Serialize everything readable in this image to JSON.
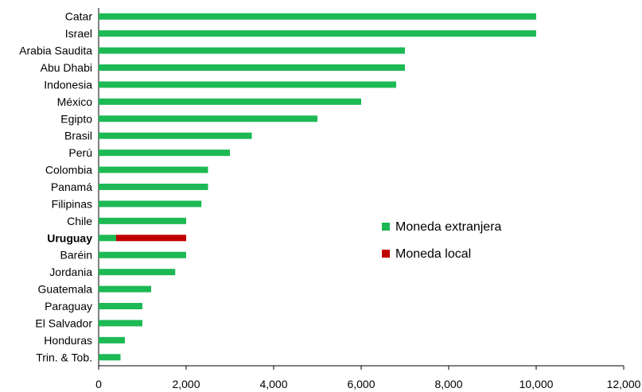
{
  "chart_data": {
    "type": "bar",
    "orientation": "horizontal",
    "stacked": true,
    "categories": [
      "Catar",
      "Israel",
      "Arabia Saudita",
      "Abu Dhabi",
      "Indonesia",
      "México",
      "Egipto",
      "Brasil",
      "Perú",
      "Colombia",
      "Panamá",
      "Filipinas",
      "Chile",
      "Uruguay",
      "Baréin",
      "Jordania",
      "Guatemala",
      "Paraguay",
      "El Salvador",
      "Honduras",
      "Trin. & Tob."
    ],
    "highlighted_category": "Uruguay",
    "series": [
      {
        "name": "Moneda extranjera",
        "color": "#1db954",
        "values": [
          10000,
          10000,
          7000,
          7000,
          6800,
          6000,
          5000,
          3500,
          3000,
          2500,
          2500,
          2350,
          2000,
          400,
          2000,
          1750,
          1200,
          1000,
          1000,
          600,
          500
        ]
      },
      {
        "name": "Moneda local",
        "color": "#c00000",
        "values": [
          0,
          0,
          0,
          0,
          0,
          0,
          0,
          0,
          0,
          0,
          0,
          0,
          0,
          1600,
          0,
          0,
          0,
          0,
          0,
          0,
          0
        ]
      }
    ],
    "xlim": [
      0,
      12000
    ],
    "xticks": [
      0,
      2000,
      4000,
      6000,
      8000,
      10000,
      12000
    ],
    "xtick_labels": [
      "0",
      "2,000",
      "4,000",
      "6,000",
      "8,000",
      "10,000",
      "12,000"
    ],
    "grid": false,
    "legend_position": "center-right",
    "title": "",
    "xlabel": "",
    "ylabel": ""
  }
}
